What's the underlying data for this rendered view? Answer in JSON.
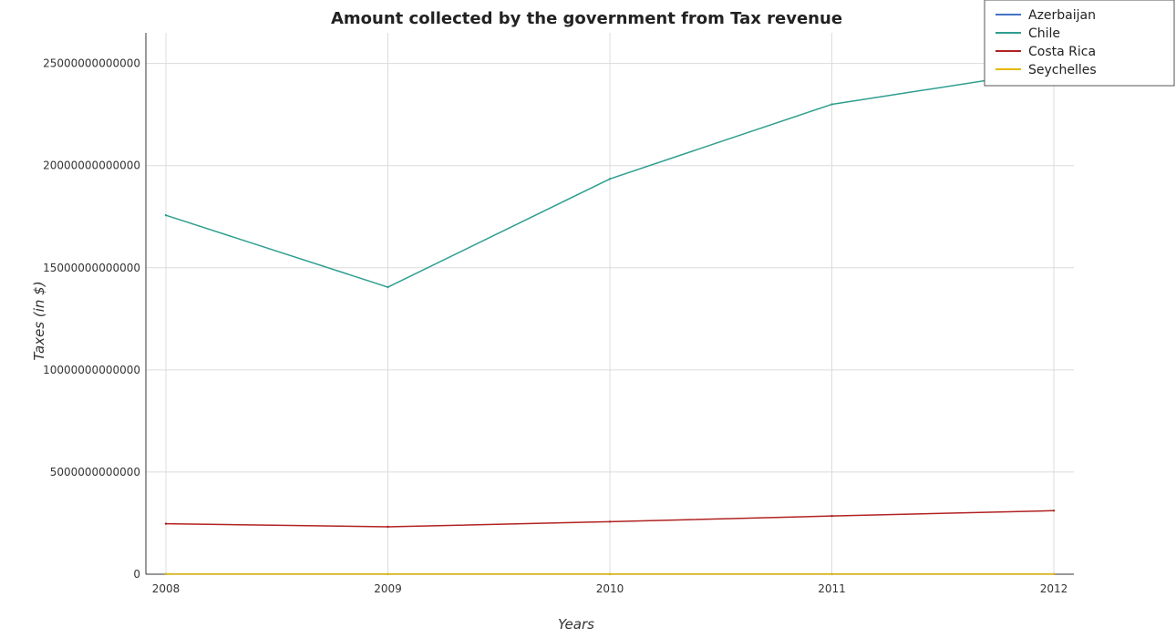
{
  "chart_data": {
    "type": "line",
    "title": "Amount collected by the government from Tax revenue",
    "xlabel": "Years",
    "ylabel": "Taxes (in $)",
    "categories": [
      "2008",
      "2009",
      "2010",
      "2011",
      "2012"
    ],
    "ylim": [
      0,
      26500000000000
    ],
    "yticks": [
      0,
      5000000000000,
      10000000000000,
      15000000000000,
      20000000000000,
      25000000000000
    ],
    "ytick_labels": [
      "0",
      "5000000000000",
      "10000000000000",
      "15000000000000",
      "20000000000000",
      "25000000000000"
    ],
    "grid": true,
    "legend_position": "top-right",
    "series": [
      {
        "name": "Azerbaijan",
        "color": "#4472c4",
        "values": [
          6000000000,
          4500000000,
          5000000000,
          6000000000,
          6500000000
        ]
      },
      {
        "name": "Chile",
        "color": "#2e9e8f",
        "values": [
          17570000000000,
          14050000000000,
          19350000000000,
          23000000000000,
          24680000000000
        ]
      },
      {
        "name": "Costa Rica",
        "color": "#b22222",
        "values": [
          2470000000000,
          2320000000000,
          2570000000000,
          2850000000000,
          3110000000000
        ]
      },
      {
        "name": "Seychelles",
        "color": "#e6b800",
        "values": [
          3000000000,
          3500000000,
          4000000000,
          4500000000,
          5000000000
        ]
      }
    ]
  }
}
